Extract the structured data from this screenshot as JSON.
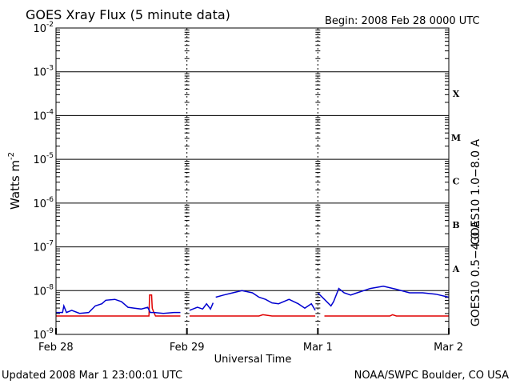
{
  "header": {
    "title": "GOES Xray Flux (5 minute data)",
    "begin": "Begin:  2008 Feb 28 0000 UTC"
  },
  "footer": {
    "updated": "Updated 2008 Mar  1 23:00:01 UTC",
    "credit": "NOAA/SWPC Boulder, CO USA"
  },
  "chart_data": {
    "type": "line",
    "title": "GOES Xray Flux (5 minute data)",
    "xlabel": "Universal Time",
    "ylabel_base": "Watts m",
    "ylabel_exp": "-2",
    "y_scale": "log",
    "ylim": [
      1e-09,
      0.01
    ],
    "xlim_days": [
      0,
      3
    ],
    "x_ticks": [
      {
        "day": 0,
        "label": "Feb 28"
      },
      {
        "day": 1,
        "label": "Feb 29"
      },
      {
        "day": 2,
        "label": "Mar 1"
      },
      {
        "day": 3,
        "label": "Mar 2"
      }
    ],
    "y_ticks": [
      {
        "exp": -2,
        "label": "10",
        "sup": "-2"
      },
      {
        "exp": -3,
        "label": "10",
        "sup": "-3"
      },
      {
        "exp": -4,
        "label": "10",
        "sup": "-4"
      },
      {
        "exp": -5,
        "label": "10",
        "sup": "-5"
      },
      {
        "exp": -6,
        "label": "10",
        "sup": "-6"
      },
      {
        "exp": -7,
        "label": "10",
        "sup": "-7"
      },
      {
        "exp": -8,
        "label": "10",
        "sup": "-8"
      },
      {
        "exp": -9,
        "label": "10",
        "sup": "-9"
      }
    ],
    "flare_classes": [
      {
        "label": "X",
        "exp": -3.5
      },
      {
        "label": "M",
        "exp": -4.5
      },
      {
        "label": "C",
        "exp": -5.5
      },
      {
        "label": "B",
        "exp": -6.5
      },
      {
        "label": "A",
        "exp": -7.5
      }
    ],
    "gridlines_y": true,
    "gridlines_x": "dashed at day boundaries",
    "series": [
      {
        "name": "GOES10 1.0−8.0 A",
        "color": "#e00000",
        "segments": [
          [
            [
              0.0,
              -8.58
            ],
            [
              0.62,
              -8.58
            ],
            [
              0.71,
              -8.58
            ],
            [
              0.715,
              -8.1
            ],
            [
              0.73,
              -8.1
            ],
            [
              0.735,
              -8.4
            ],
            [
              0.745,
              -8.48
            ],
            [
              0.76,
              -8.58
            ],
            [
              0.95,
              -8.58
            ]
          ],
          [
            [
              1.02,
              -8.58
            ],
            [
              1.55,
              -8.58
            ],
            [
              1.58,
              -8.55
            ],
            [
              1.65,
              -8.58
            ],
            [
              1.98,
              -8.58
            ]
          ],
          [
            [
              2.05,
              -8.58
            ],
            [
              2.55,
              -8.58
            ],
            [
              2.57,
              -8.55
            ],
            [
              2.6,
              -8.58
            ],
            [
              3.0,
              -8.58
            ]
          ]
        ]
      },
      {
        "name": "GOES10 0.5−4.0 A",
        "color": "#0000d0",
        "segments": [
          [
            [
              0.0,
              -8.5
            ],
            [
              0.05,
              -8.5
            ],
            [
              0.06,
              -8.35
            ],
            [
              0.08,
              -8.5
            ],
            [
              0.12,
              -8.45
            ],
            [
              0.18,
              -8.52
            ],
            [
              0.25,
              -8.5
            ],
            [
              0.3,
              -8.35
            ],
            [
              0.35,
              -8.3
            ],
            [
              0.38,
              -8.22
            ],
            [
              0.45,
              -8.2
            ],
            [
              0.5,
              -8.25
            ],
            [
              0.55,
              -8.38
            ],
            [
              0.6,
              -8.4
            ],
            [
              0.65,
              -8.42
            ],
            [
              0.7,
              -8.38
            ],
            [
              0.72,
              -8.5
            ],
            [
              0.75,
              -8.5
            ],
            [
              0.82,
              -8.52
            ],
            [
              0.9,
              -8.5
            ],
            [
              0.95,
              -8.5
            ]
          ],
          [
            [
              1.02,
              -8.45
            ],
            [
              1.08,
              -8.38
            ],
            [
              1.12,
              -8.42
            ],
            [
              1.15,
              -8.3
            ],
            [
              1.18,
              -8.42
            ],
            [
              1.2,
              -8.28
            ]
          ],
          [
            [
              1.22,
              -8.15
            ],
            [
              1.28,
              -8.1
            ],
            [
              1.35,
              -8.05
            ],
            [
              1.42,
              -8.0
            ],
            [
              1.5,
              -8.05
            ],
            [
              1.55,
              -8.15
            ],
            [
              1.6,
              -8.2
            ],
            [
              1.65,
              -8.28
            ],
            [
              1.7,
              -8.3
            ],
            [
              1.78,
              -8.2
            ],
            [
              1.85,
              -8.3
            ],
            [
              1.9,
              -8.4
            ],
            [
              1.95,
              -8.3
            ],
            [
              1.98,
              -8.45
            ]
          ],
          [
            [
              2.0,
              -8.05
            ],
            [
              2.05,
              -8.2
            ],
            [
              2.1,
              -8.35
            ],
            [
              2.12,
              -8.25
            ],
            [
              2.16,
              -7.95
            ],
            [
              2.2,
              -8.05
            ],
            [
              2.25,
              -8.1
            ],
            [
              2.3,
              -8.05
            ],
            [
              2.35,
              -8.0
            ],
            [
              2.4,
              -7.95
            ],
            [
              2.5,
              -7.9
            ],
            [
              2.6,
              -7.97
            ],
            [
              2.7,
              -8.05
            ],
            [
              2.8,
              -8.05
            ],
            [
              2.9,
              -8.08
            ],
            [
              3.0,
              -8.15
            ]
          ]
        ]
      }
    ]
  }
}
